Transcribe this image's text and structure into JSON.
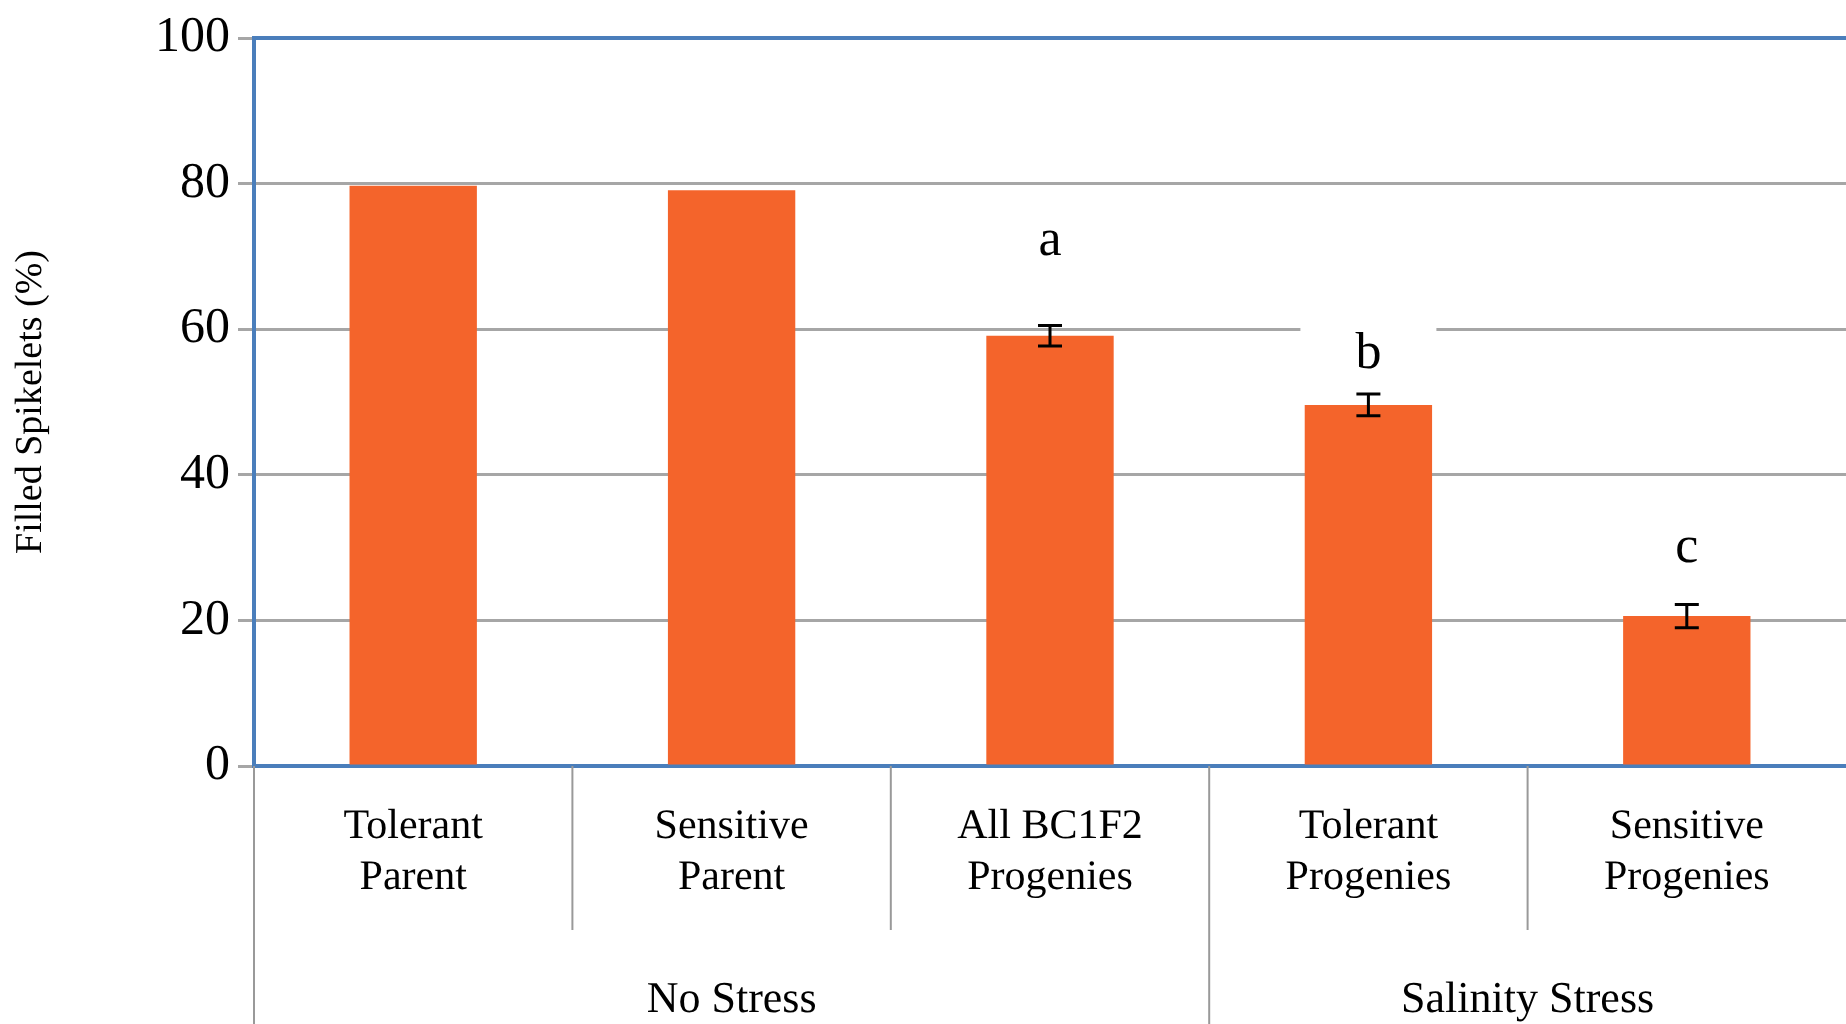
{
  "chart_data": {
    "type": "bar",
    "ylabel": "Filled Spikelets (%)",
    "categories": [
      "Tolerant Parent",
      "Sensitive Parent",
      "All BC1F2 Progenies",
      "Tolerant Progenies",
      "Sensitive Progenies"
    ],
    "values": [
      79.7,
      79.1,
      59.1,
      49.6,
      20.6
    ],
    "errors": [
      null,
      null,
      1.4,
      1.5,
      1.6
    ],
    "color": "#f4642b",
    "ylim": [
      0,
      100
    ],
    "yticks": [
      0,
      20,
      40,
      60,
      80,
      100
    ],
    "grid": "y",
    "legend": false,
    "annotations": [
      "a",
      "b",
      "c",
      "No Stress",
      "Salinity Stress"
    ]
  }
}
